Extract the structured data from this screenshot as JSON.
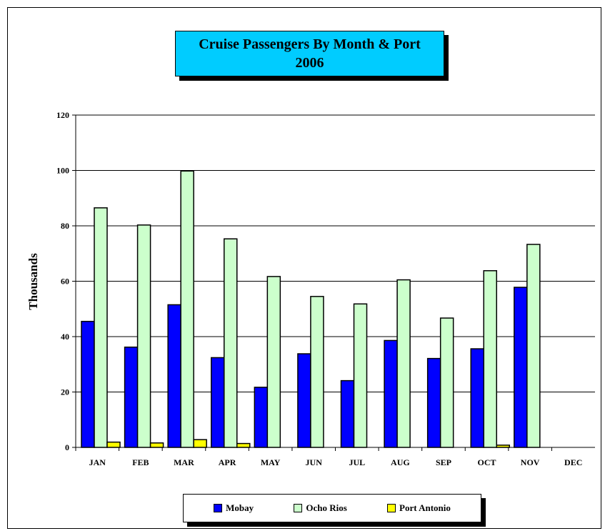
{
  "chart_data": {
    "type": "bar",
    "title": "Cruise Passengers By Month & Port",
    "subtitle": "2006",
    "xlabel": "",
    "ylabel": "Thousands",
    "ylim": [
      0,
      120
    ],
    "yticks": [
      0,
      20,
      40,
      60,
      80,
      100,
      120
    ],
    "grid": true,
    "legend_position": "bottom",
    "categories": [
      "JAN",
      "FEB",
      "MAR",
      "APR",
      "MAY",
      "JUN",
      "JUL",
      "AUG",
      "SEP",
      "OCT",
      "NOV",
      "DEC"
    ],
    "series": [
      {
        "name": "Mobay",
        "color": "#0000ff",
        "values": [
          45.5,
          36.2,
          51.5,
          32.4,
          21.7,
          33.8,
          24.1,
          38.6,
          32.1,
          35.6,
          57.8,
          0
        ]
      },
      {
        "name": "Ocho Rios",
        "color": "#ccffcc",
        "values": [
          86.5,
          80.3,
          99.8,
          75.3,
          61.7,
          54.5,
          51.8,
          60.5,
          46.7,
          63.8,
          73.3,
          0
        ]
      },
      {
        "name": "Port Antonio",
        "color": "#ffff00",
        "values": [
          1.9,
          1.6,
          2.8,
          1.4,
          0,
          0,
          0,
          0,
          0,
          0.8,
          0,
          0
        ]
      }
    ]
  }
}
